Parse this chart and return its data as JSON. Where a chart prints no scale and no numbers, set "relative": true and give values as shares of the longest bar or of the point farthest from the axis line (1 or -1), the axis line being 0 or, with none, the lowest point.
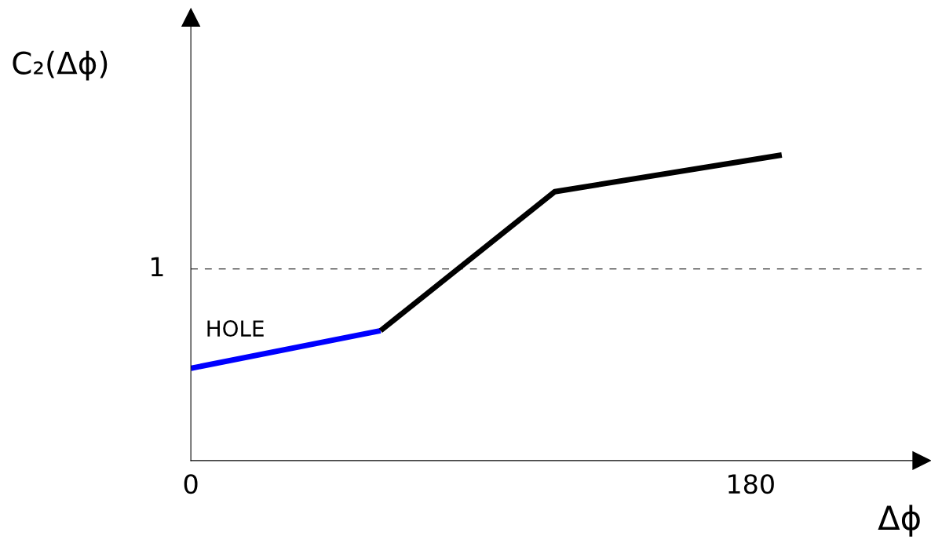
{
  "chart_data": {
    "type": "line",
    "relative": true,
    "xlabel": "Δϕ",
    "ylabel": "C₂(Δϕ)",
    "xlim": [
      0,
      235
    ],
    "xticks": [
      0,
      180
    ],
    "grid": false,
    "legend": false,
    "line_style": "solid",
    "marker": "none",
    "series": [
      {
        "color": "#0000ff",
        "x": [
          0,
          61
        ],
        "values": [
          0.302,
          0.425
        ]
      },
      {
        "color": "#000000",
        "x": [
          61,
          117,
          190
        ],
        "values": [
          0.425,
          0.88,
          1.0
        ]
      }
    ],
    "annotations": [
      "HOLE"
    ],
    "ref_lines": [
      {
        "axis": "y",
        "value": 0.627,
        "label": "1",
        "color": "#000000",
        "line_style": "dashed"
      }
    ]
  }
}
